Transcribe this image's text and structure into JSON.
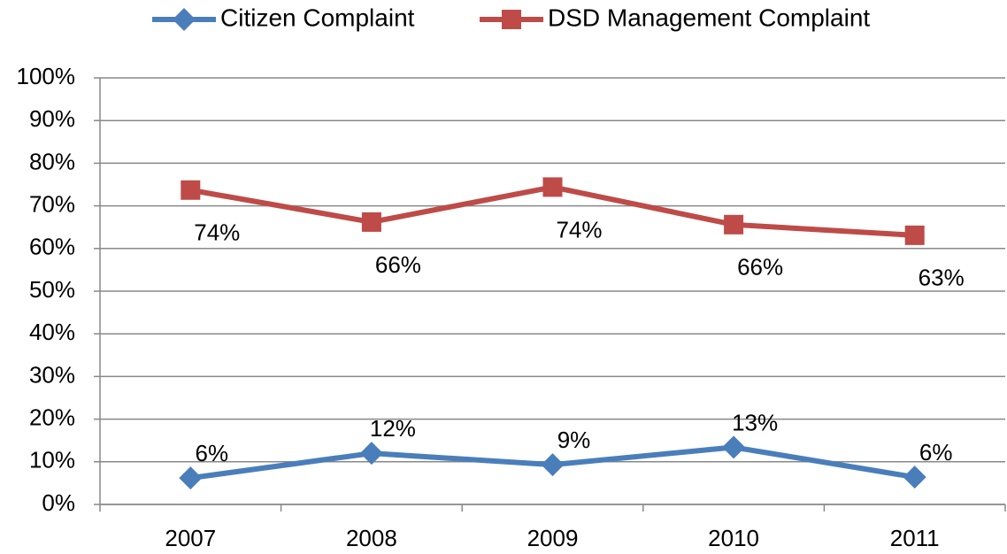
{
  "chart_data": {
    "type": "line",
    "categories": [
      "2007",
      "2008",
      "2009",
      "2010",
      "2011"
    ],
    "series": [
      {
        "name": "Citizen Complaint",
        "color": "#4a7ebb",
        "marker": "diamond",
        "values": [
          6.2,
          12.0,
          9.3,
          13.4,
          6.4
        ],
        "value_labels": [
          "6%",
          "12%",
          "9%",
          "13%",
          "6%"
        ]
      },
      {
        "name": "DSD Management Complaint",
        "color": "#be4b48",
        "marker": "square",
        "values": [
          73.7,
          66.2,
          74.4,
          65.6,
          63.1
        ],
        "value_labels": [
          "74%",
          "66%",
          "74%",
          "66%",
          "63%"
        ]
      }
    ],
    "ylim": [
      0,
      100
    ],
    "yticks": [
      {
        "value": 0,
        "label": "0%"
      },
      {
        "value": 10,
        "label": "10%"
      },
      {
        "value": 20,
        "label": "20%"
      },
      {
        "value": 30,
        "label": "30%"
      },
      {
        "value": 40,
        "label": "40%"
      },
      {
        "value": 50,
        "label": "50%"
      },
      {
        "value": 60,
        "label": "60%"
      },
      {
        "value": 70,
        "label": "70%"
      },
      {
        "value": 80,
        "label": "80%"
      },
      {
        "value": 90,
        "label": "90%"
      },
      {
        "value": 100,
        "label": "100%"
      }
    ],
    "grid": true,
    "legend": "top"
  }
}
